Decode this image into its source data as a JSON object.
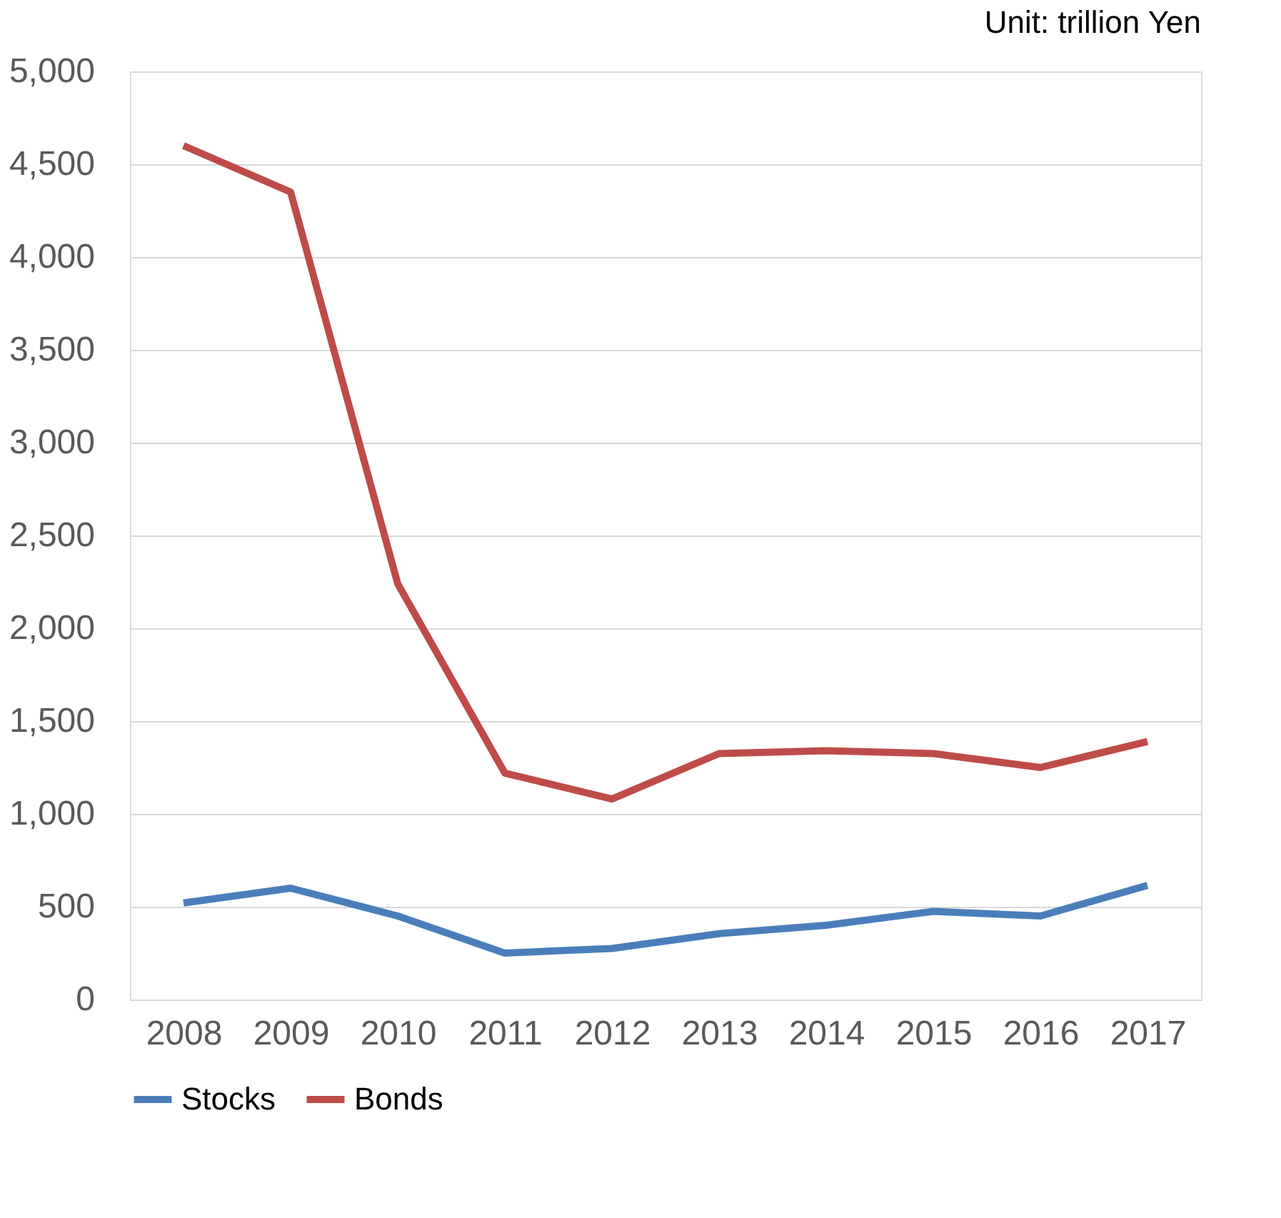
{
  "chart_data": {
    "type": "line",
    "annotations": [
      "Unit: trillion Yen"
    ],
    "categories": [
      "2008",
      "2009",
      "2010",
      "2011",
      "2012",
      "2013",
      "2014",
      "2015",
      "2016",
      "2017"
    ],
    "series": [
      {
        "name": "Stocks",
        "color": "#4a7ebb",
        "values": [
          520,
          600,
          450,
          250,
          275,
          355,
          400,
          475,
          450,
          615
        ]
      },
      {
        "name": "Bonds",
        "color": "#be4b48",
        "values": [
          4600,
          4350,
          2240,
          1220,
          1080,
          1325,
          1340,
          1325,
          1250,
          1390
        ]
      }
    ],
    "ylim": [
      0,
      5000
    ],
    "yticks": [
      0,
      500,
      {
        "value": 1000,
        "label": "1,000"
      },
      {
        "value": 1500,
        "label": "1,500"
      },
      {
        "value": 2000,
        "label": "2,000"
      },
      {
        "value": 2500,
        "label": "2,500"
      },
      {
        "value": 3000,
        "label": "3,000"
      },
      {
        "value": 3500,
        "label": "3,500"
      },
      {
        "value": 4000,
        "label": "4,000"
      },
      {
        "value": 4500,
        "label": "4,500"
      },
      {
        "value": 5000,
        "label": "5,000"
      }
    ],
    "grid": "y",
    "legend": "bottom",
    "marker": "none",
    "line_style": "solid"
  }
}
